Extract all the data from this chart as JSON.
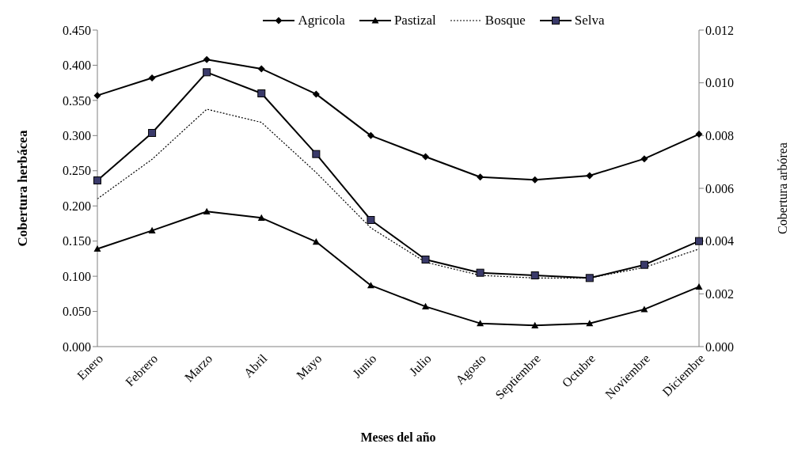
{
  "chart_data": {
    "type": "line",
    "xlabel": "Meses del año",
    "ylabel": "Cobertura herbácea",
    "y2label": "Cobertura arbórea",
    "categories": [
      "Enero",
      "Febrero",
      "Marzo",
      "Abril",
      "Mayo",
      "Junio",
      "Julio",
      "Agosto",
      "Septiembre",
      "Octubre",
      "Noviembre",
      "Diciembre"
    ],
    "series": [
      {
        "name": "Agricola",
        "color": "#000000",
        "marker": "diamond",
        "line_style": "solid",
        "values": [
          0.357,
          0.382,
          0.408,
          0.395,
          0.359,
          0.3,
          0.27,
          0.241,
          0.237,
          0.243,
          0.267,
          0.302
        ]
      },
      {
        "name": "Pastizal",
        "color": "#000000",
        "marker": "triangle",
        "line_style": "solid",
        "values": [
          0.139,
          0.165,
          0.192,
          0.183,
          0.149,
          0.087,
          0.057,
          0.033,
          0.03,
          0.033,
          0.053,
          0.085
        ]
      },
      {
        "name": "Bosque",
        "color": "#000000",
        "marker": "none",
        "line_style": "dotted",
        "axis": "y2",
        "values": [
          0.0056,
          0.0071,
          0.009,
          0.0085,
          0.0066,
          0.0045,
          0.0032,
          0.0027,
          0.0026,
          0.0026,
          0.003,
          0.0037
        ]
      },
      {
        "name": "Selva",
        "color": "#000000",
        "marker": "square",
        "line_style": "solid",
        "axis": "y2",
        "values": [
          0.0063,
          0.0081,
          0.0104,
          0.0096,
          0.0073,
          0.0048,
          0.0033,
          0.0028,
          0.0027,
          0.0026,
          0.0031,
          0.004
        ]
      }
    ],
    "ylim": [
      0,
      0.45
    ],
    "yticks": [
      {
        "value": 0,
        "label": "0.000"
      },
      {
        "value": 0.05,
        "label": "0.050"
      },
      {
        "value": 0.1,
        "label": "0.100"
      },
      {
        "value": 0.15,
        "label": "0.150"
      },
      {
        "value": 0.2,
        "label": "0.200"
      },
      {
        "value": 0.25,
        "label": "0.250"
      },
      {
        "value": 0.3,
        "label": "0.300"
      },
      {
        "value": 0.35,
        "label": "0.350"
      },
      {
        "value": 0.4,
        "label": "0.400"
      },
      {
        "value": 0.45,
        "label": "0.450"
      }
    ],
    "y2lim": [
      0,
      0.012
    ],
    "y2ticks": [
      {
        "value": 0,
        "label": "0.000"
      },
      {
        "value": 0.002,
        "label": "0.002"
      },
      {
        "value": 0.004,
        "label": "0.004"
      },
      {
        "value": 0.006,
        "label": "0.006"
      },
      {
        "value": 0.008,
        "label": "0.008"
      },
      {
        "value": 0.01,
        "label": "0.010"
      },
      {
        "value": 0.012,
        "label": "0.012"
      }
    ],
    "grid": false,
    "legend": "top"
  }
}
